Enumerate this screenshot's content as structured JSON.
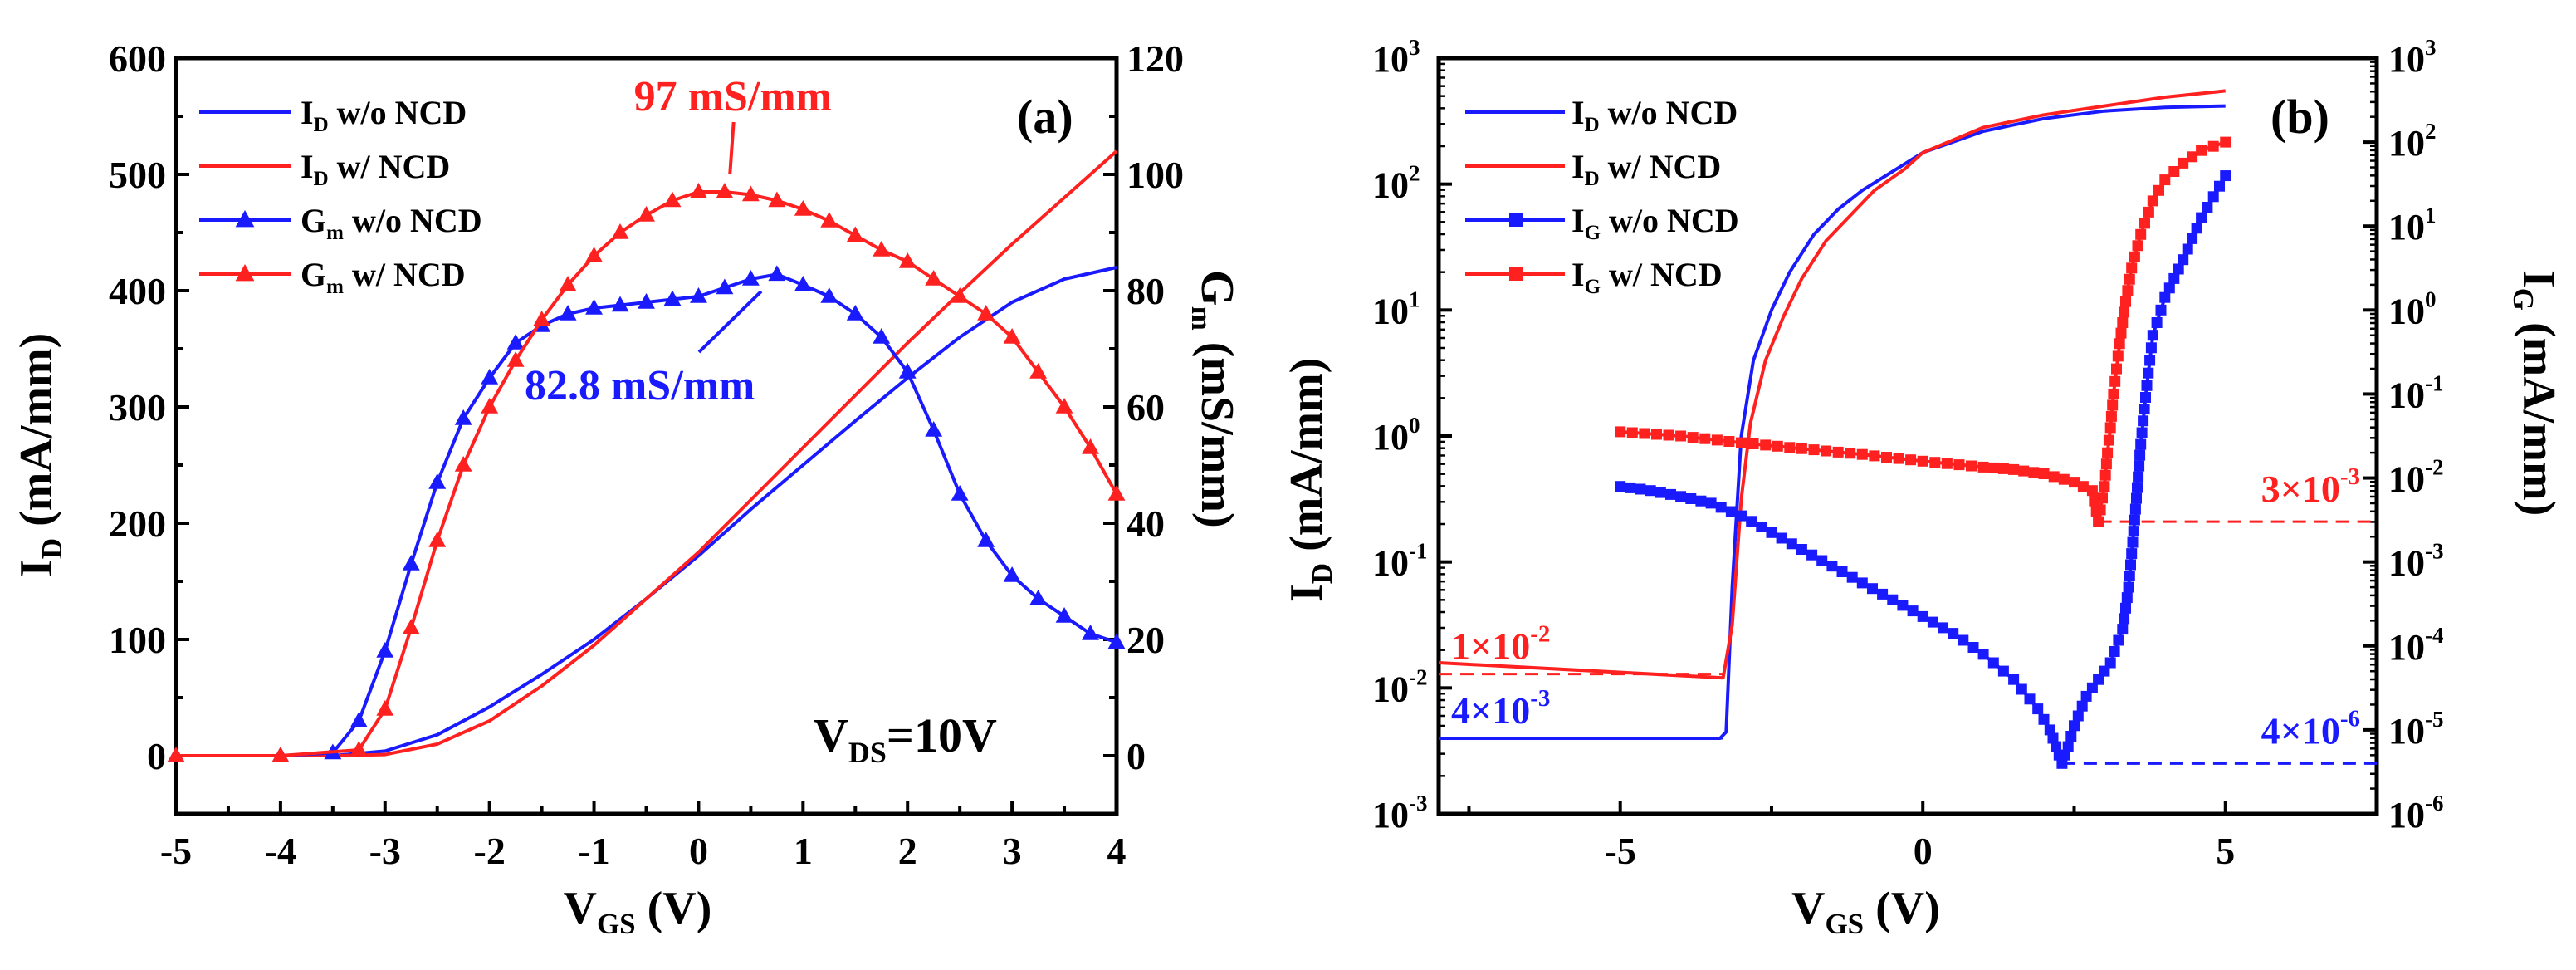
{
  "colors": {
    "blue": "#1a1aff",
    "red": "#ff2020",
    "black": "#000000"
  },
  "chart_data": [
    {
      "id": "a",
      "type": "line",
      "panel_label": "(a)",
      "xlabel": {
        "main": "V",
        "sub": "GS",
        "rest": " (V)"
      },
      "ylabel_left": {
        "main": "I",
        "sub": "D",
        "rest": " (mA/mm)"
      },
      "ylabel_right": {
        "main": "G",
        "sub": "m",
        "rest": " (mS/mm)"
      },
      "xlim": [
        -5,
        4
      ],
      "ylim_left": [
        -50,
        600
      ],
      "ylim_right": [
        -10,
        120
      ],
      "x_ticks": [
        -5,
        -4,
        -3,
        -2,
        -1,
        0,
        1,
        2,
        3,
        4
      ],
      "x_tick_labels": [
        "-5",
        "-4",
        "-3",
        "-2",
        "-1",
        "0",
        "1",
        "2",
        "3",
        "4"
      ],
      "y_left_ticks": [
        0,
        100,
        200,
        300,
        400,
        500,
        600
      ],
      "y_left_tick_labels": [
        "0",
        "100",
        "200",
        "300",
        "400",
        "500",
        "600"
      ],
      "y_right_ticks": [
        0,
        20,
        40,
        60,
        80,
        100,
        120
      ],
      "y_right_tick_labels": [
        "0",
        "20",
        "40",
        "60",
        "80",
        "100",
        "120"
      ],
      "legend": [
        {
          "main": "I",
          "sub": "D",
          "rest": "  w/o NCD",
          "color": "blue",
          "marker": "none"
        },
        {
          "main": "I",
          "sub": "D",
          "rest": " w/ NCD",
          "color": "red",
          "marker": "none"
        },
        {
          "main": "G",
          "sub": "m",
          "rest": " w/o NCD",
          "color": "blue",
          "marker": "triangle"
        },
        {
          "main": "G",
          "sub": "m",
          "rest": " w/ NCD",
          "color": "red",
          "marker": "triangle"
        }
      ],
      "annotations": [
        {
          "text": "97 mS/mm",
          "color": "red",
          "x": -0.3,
          "y_left": 555,
          "point_x": 0.3,
          "point_y_left": 490
        },
        {
          "text": "82.8 mS/mm",
          "color": "blue",
          "x": 0.6,
          "y_left": 315,
          "point_x": 0.6,
          "point_y_left": 408
        }
      ],
      "condition": {
        "main": "V",
        "sub": "DS",
        "rest": "=10V"
      },
      "series": [
        {
          "name": "I_D w/o NCD",
          "axis": "left",
          "color": "blue",
          "marker": "none",
          "x": [
            -5,
            -3.5,
            -3,
            -2.5,
            -2,
            -1.5,
            -1,
            -0.5,
            0,
            0.5,
            1,
            1.5,
            2,
            2.5,
            3,
            3.5,
            4
          ],
          "y": [
            0,
            0,
            4,
            18,
            42,
            70,
            100,
            135,
            172,
            212,
            250,
            288,
            325,
            360,
            390,
            410,
            420
          ]
        },
        {
          "name": "I_D w/ NCD",
          "axis": "left",
          "color": "red",
          "marker": "none",
          "x": [
            -5,
            -3.5,
            -3,
            -2.5,
            -2,
            -1.5,
            -1,
            -0.5,
            0,
            0.5,
            1,
            1.5,
            2,
            2.5,
            3,
            3.5,
            4
          ],
          "y": [
            0,
            0,
            1,
            10,
            30,
            60,
            95,
            135,
            175,
            220,
            265,
            310,
            355,
            398,
            440,
            480,
            520
          ]
        },
        {
          "name": "G_m w/o NCD",
          "axis": "right",
          "color": "blue",
          "marker": "triangle",
          "x": [
            -5,
            -4,
            -3.5,
            -3.25,
            -3,
            -2.75,
            -2.5,
            -2.25,
            -2,
            -1.75,
            -1.5,
            -1.25,
            -1,
            -0.75,
            -0.5,
            -0.25,
            0,
            0.25,
            0.5,
            0.75,
            1,
            1.25,
            1.5,
            1.75,
            2,
            2.25,
            2.5,
            2.75,
            3,
            3.25,
            3.5,
            3.75,
            4
          ],
          "y": [
            0,
            0,
            0.5,
            6,
            18,
            33,
            47,
            58,
            65,
            71,
            74,
            76,
            77,
            77.5,
            78,
            78.5,
            79,
            80.5,
            82,
            82.8,
            81,
            79,
            76,
            72,
            66,
            56,
            45,
            37,
            31,
            27,
            24,
            21,
            19.5
          ]
        },
        {
          "name": "G_m w/ NCD",
          "axis": "right",
          "color": "red",
          "marker": "triangle",
          "x": [
            -5,
            -4,
            -3.25,
            -3,
            -2.75,
            -2.5,
            -2.25,
            -2,
            -1.75,
            -1.5,
            -1.25,
            -1,
            -0.75,
            -0.5,
            -0.25,
            0,
            0.25,
            0.5,
            0.75,
            1,
            1.25,
            1.5,
            1.75,
            2,
            2.25,
            2.5,
            2.75,
            3,
            3.25,
            3.5,
            3.75,
            4
          ],
          "y": [
            0,
            0,
            1,
            8,
            22,
            37,
            50,
            60,
            68,
            75,
            81,
            86,
            90,
            93,
            95.5,
            97,
            97,
            96.5,
            95.5,
            94,
            92,
            89.5,
            87,
            85,
            82,
            79,
            76,
            72,
            66,
            60,
            53,
            45
          ]
        }
      ]
    },
    {
      "id": "b",
      "type": "line",
      "panel_label": "(b)",
      "xlabel": {
        "main": "V",
        "sub": "GS",
        "rest": " (V)"
      },
      "ylabel_left": {
        "main": "I",
        "sub": "D",
        "rest": " (mA/mm)"
      },
      "ylabel_right": {
        "main": "I",
        "sub": "G",
        "rest": " (mA/mm)"
      },
      "xlim": [
        -8,
        7.5
      ],
      "x_ticks": [
        -5,
        0,
        5
      ],
      "x_tick_labels": [
        "-5",
        "0",
        "5"
      ],
      "ylim_left_log10": [
        -3,
        3
      ],
      "ylim_right_log10": [
        -6,
        3
      ],
      "y_left_ticks_log10": [
        -3,
        -2,
        -1,
        0,
        1,
        2,
        3
      ],
      "y_left_tick_labels": [
        {
          "base": "10",
          "exp": "-3"
        },
        {
          "base": "10",
          "exp": "-2"
        },
        {
          "base": "10",
          "exp": "-1"
        },
        {
          "base": "10",
          "exp": "0"
        },
        {
          "base": "10",
          "exp": "1"
        },
        {
          "base": "10",
          "exp": "2"
        },
        {
          "base": "10",
          "exp": "3"
        }
      ],
      "y_right_ticks_log10": [
        -6,
        -5,
        -4,
        -3,
        -2,
        -1,
        0,
        1,
        2,
        3
      ],
      "y_right_tick_labels": [
        {
          "base": "10",
          "exp": "-6"
        },
        {
          "base": "10",
          "exp": "-5"
        },
        {
          "base": "10",
          "exp": "-4"
        },
        {
          "base": "10",
          "exp": "-3"
        },
        {
          "base": "10",
          "exp": "-2"
        },
        {
          "base": "10",
          "exp": "-1"
        },
        {
          "base": "10",
          "exp": "0"
        },
        {
          "base": "10",
          "exp": "1"
        },
        {
          "base": "10",
          "exp": "2"
        },
        {
          "base": "10",
          "exp": "3"
        }
      ],
      "legend": [
        {
          "main": "I",
          "sub": "D",
          "rest": " w/o NCD",
          "color": "blue",
          "marker": "none"
        },
        {
          "main": "I",
          "sub": "D",
          "rest": " w/ NCD",
          "color": "red",
          "marker": "none"
        },
        {
          "main": "I",
          "sub": "G",
          "rest": " w/o NCD",
          "color": "blue",
          "marker": "square"
        },
        {
          "main": "I",
          "sub": "G",
          "rest": " w/ NCD",
          "color": "red",
          "marker": "square"
        }
      ],
      "reference_lines": [
        {
          "label": {
            "base": "1×10",
            "exp": "-2"
          },
          "color": "red",
          "axis": "left",
          "y_log10": -1.89,
          "x_from": -8,
          "x_to": -3.3
        },
        {
          "label": {
            "base": "4×10",
            "exp": "-3"
          },
          "color": "blue",
          "axis": "left",
          "y_log10": -2.4,
          "x_from": -8,
          "x_to": -3.3
        },
        {
          "label": {
            "base": "3×10",
            "exp": "-3"
          },
          "color": "red",
          "axis": "right",
          "y_log10": -2.52,
          "x_from": 2.9,
          "x_to": 7.5
        },
        {
          "label": {
            "base": "4×10",
            "exp": "-6"
          },
          "color": "blue",
          "axis": "right",
          "y_log10": -5.4,
          "x_from": 2.3,
          "x_to": 7.5
        }
      ],
      "series": [
        {
          "name": "I_D w/o NCD",
          "axis": "left",
          "color": "blue",
          "marker": "none",
          "x": [
            -8,
            -3.35,
            -3.25,
            -3.15,
            -3.0,
            -2.8,
            -2.5,
            -2.2,
            -1.8,
            -1.4,
            -1.0,
            -0.5,
            0,
            1,
            2,
            3,
            4,
            5
          ],
          "y_log10": [
            -2.4,
            -2.4,
            -2.35,
            -1.2,
            0,
            0.6,
            1.0,
            1.3,
            1.6,
            1.8,
            1.95,
            2.1,
            2.25,
            2.42,
            2.52,
            2.58,
            2.61,
            2.62
          ]
        },
        {
          "name": "I_D w/ NCD",
          "axis": "left",
          "color": "red",
          "marker": "none",
          "x": [
            -8,
            -3.3,
            -3.15,
            -3.0,
            -2.85,
            -2.6,
            -2.3,
            -2.0,
            -1.6,
            -1.2,
            -0.8,
            -0.3,
            0,
            1,
            2,
            3,
            4,
            5
          ],
          "y_log10": [
            -1.8,
            -1.92,
            -1.5,
            -0.5,
            0.1,
            0.6,
            0.95,
            1.25,
            1.55,
            1.75,
            1.95,
            2.12,
            2.25,
            2.45,
            2.55,
            2.62,
            2.69,
            2.74
          ]
        },
        {
          "name": "I_G w/o NCD",
          "axis": "right",
          "color": "blue",
          "marker": "square",
          "x": [
            -5,
            -4.5,
            -4,
            -3.5,
            -3,
            -2.5,
            -2,
            -1.5,
            -1,
            -0.5,
            0,
            0.5,
            1,
            1.5,
            1.9,
            2.1,
            2.2,
            2.3,
            2.4,
            2.5,
            2.7,
            2.9,
            3.1,
            3.3,
            3.4,
            3.5,
            3.6,
            3.7,
            3.8,
            4,
            4.3,
            4.6,
            5
          ],
          "y_log10": [
            -2.1,
            -2.15,
            -2.22,
            -2.3,
            -2.45,
            -2.65,
            -2.85,
            -3.05,
            -3.25,
            -3.45,
            -3.65,
            -3.85,
            -4.1,
            -4.4,
            -4.75,
            -5.0,
            -5.2,
            -5.4,
            -5.2,
            -4.95,
            -4.6,
            -4.4,
            -4.2,
            -3.8,
            -3.3,
            -2.5,
            -1.6,
            -0.9,
            -0.3,
            0.15,
            0.6,
            1.1,
            1.6
          ]
        },
        {
          "name": "I_G w/ NCD",
          "axis": "right",
          "color": "red",
          "marker": "square",
          "x": [
            -5,
            -4,
            -3,
            -2,
            -1,
            0,
            1,
            1.5,
            2,
            2.5,
            2.8,
            2.9,
            3.0,
            3.05,
            3.1,
            3.15,
            3.25,
            3.35,
            3.45,
            3.6,
            3.8,
            4,
            4.3,
            4.6,
            5
          ],
          "y_log10": [
            -1.45,
            -1.5,
            -1.58,
            -1.65,
            -1.72,
            -1.8,
            -1.87,
            -1.9,
            -1.95,
            -2.05,
            -2.15,
            -2.52,
            -2.1,
            -1.7,
            -1.4,
            -1.0,
            -0.4,
            0.1,
            0.5,
            0.9,
            1.3,
            1.55,
            1.75,
            1.9,
            2.0
          ]
        }
      ]
    }
  ]
}
